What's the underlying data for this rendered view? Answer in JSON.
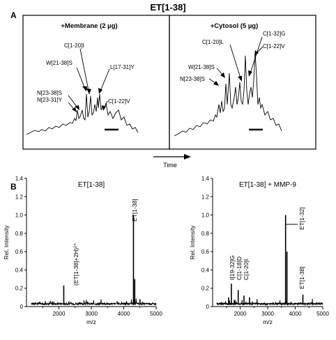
{
  "figure": {
    "title": "ET[1-38]",
    "panel_a_letter": "A",
    "panel_b_letter": "B",
    "time_label": "Time"
  },
  "chart_data": [
    {
      "type": "line",
      "panel": "A-left",
      "title": "+Membrane (2 µg)",
      "xlabel": "Time",
      "ylabel": "",
      "annotations": [
        {
          "label": "C[1-20]I",
          "x": 0.52
        },
        {
          "label": "W[21-38]S",
          "x": 0.52
        },
        {
          "label": "L[17-31]Y",
          "x": 0.62
        },
        {
          "label": "N[23-38]S",
          "x": 0.45
        },
        {
          "label": "N[23-31]Y",
          "x": 0.45
        },
        {
          "label": "C[1-22]V",
          "x": 0.7
        }
      ]
    },
    {
      "type": "line",
      "panel": "A-right",
      "title": "+Cytosol (5 µg)",
      "xlabel": "Time",
      "ylabel": "",
      "annotations": [
        {
          "label": "C[1-32]G",
          "x": 0.65
        },
        {
          "label": "C[1-20]L",
          "x": 0.6
        },
        {
          "label": "C[1-22]V",
          "x": 0.75
        },
        {
          "label": "W[21-38]S",
          "x": 0.52
        },
        {
          "label": "N[23-38]S",
          "x": 0.47
        }
      ]
    },
    {
      "type": "line",
      "panel": "B-left",
      "title": "ET[1-38]",
      "xlabel": "m/z",
      "ylabel": "Rel. Intensity",
      "xlim": [
        1000,
        5000
      ],
      "ylim": [
        0,
        1.4
      ],
      "x_ticks": [
        2000,
        3000,
        4000,
        5000
      ],
      "y_ticks": [
        "0",
        "0.2",
        "0.4",
        "0.6",
        "0.8",
        "1.0",
        "1.2",
        "1.4"
      ],
      "peaks": [
        {
          "x": 2150,
          "y": 0.23
        },
        {
          "x": 4300,
          "y": 1.0
        },
        {
          "x": 4340,
          "y": 0.3
        },
        {
          "x": 4500,
          "y": 0.08
        }
      ],
      "peak_labels": [
        {
          "label": "(ET[1-38]+2H)²⁺",
          "x": 2150
        },
        {
          "label": "ET[1-38]",
          "x": 4300
        }
      ]
    },
    {
      "type": "line",
      "panel": "B-right",
      "title": "ET[1-38] + MMP-9",
      "xlabel": "m/z",
      "ylabel": "Rel. Intensity",
      "xlim": [
        1000,
        5000
      ],
      "ylim": [
        0,
        1.4
      ],
      "x_ticks": [
        2000,
        3000,
        4000,
        5000
      ],
      "y_ticks": [
        "0",
        "0.2",
        "0.4",
        "0.6",
        "0.8",
        "1.0",
        "1.2",
        "1.4"
      ],
      "peaks": [
        {
          "x": 1580,
          "y": 0.1
        },
        {
          "x": 1680,
          "y": 0.25
        },
        {
          "x": 1930,
          "y": 0.18
        },
        {
          "x": 2140,
          "y": 0.12
        },
        {
          "x": 2340,
          "y": 0.1
        },
        {
          "x": 3650,
          "y": 1.0
        },
        {
          "x": 3700,
          "y": 0.6
        },
        {
          "x": 4280,
          "y": 0.13
        }
      ],
      "peak_labels": [
        {
          "label": "I[19-32]G",
          "x": 1680
        },
        {
          "label": "C[1-18]D",
          "x": 1930
        },
        {
          "label": "C[1-20]I",
          "x": 2140
        },
        {
          "label": "ET[1-32]",
          "x": 3650
        },
        {
          "label": "ET[1-38]",
          "x": 4280
        }
      ]
    }
  ]
}
